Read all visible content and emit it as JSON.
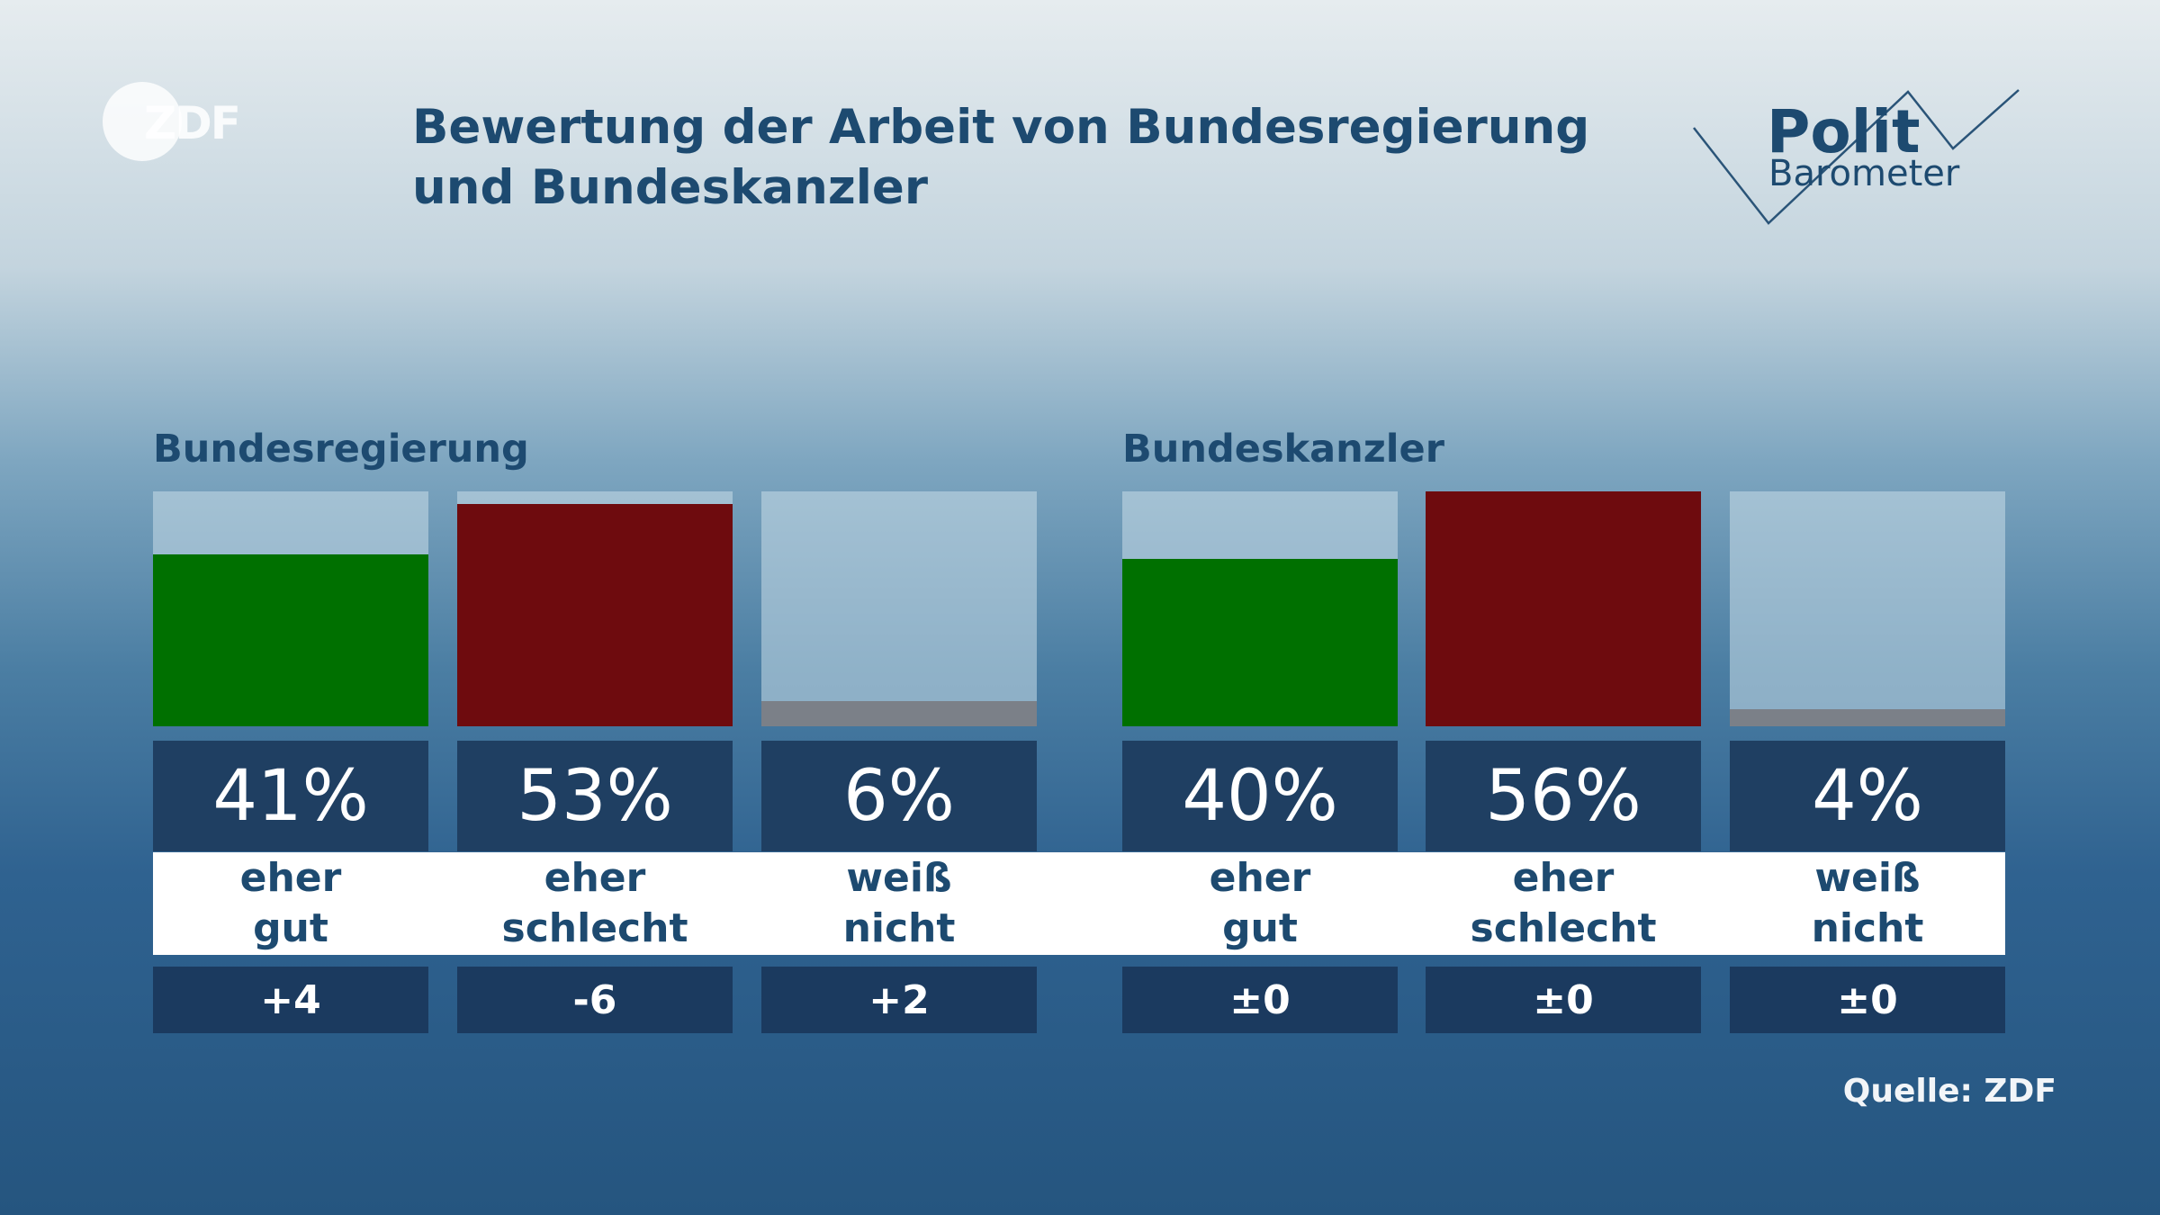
{
  "logo": "ZDF",
  "brand": {
    "line1": "Polit",
    "line2": "Barometer"
  },
  "title": "Bewertung der Arbeit von Bundesregierung und Bundeskanzler",
  "source": "Quelle: ZDF",
  "chart_data": [
    {
      "type": "bar",
      "title": "Bundesregierung",
      "categories": [
        "eher gut",
        "eher schlecht",
        "weiß nicht"
      ],
      "values": [
        41,
        53,
        6
      ],
      "value_labels": [
        "41%",
        "53%",
        "6%"
      ],
      "changes": [
        "+4",
        "-6",
        "+2"
      ],
      "colors": [
        "#007000",
        "#6e0b0e",
        "#7b8088"
      ]
    },
    {
      "type": "bar",
      "title": "Bundeskanzler",
      "categories": [
        "eher gut",
        "eher schlecht",
        "weiß nicht"
      ],
      "values": [
        40,
        56,
        4
      ],
      "value_labels": [
        "40%",
        "56%",
        "4%"
      ],
      "changes": [
        "±0",
        "±0",
        "±0"
      ],
      "colors": [
        "#007000",
        "#6e0b0e",
        "#7b8088"
      ]
    }
  ]
}
